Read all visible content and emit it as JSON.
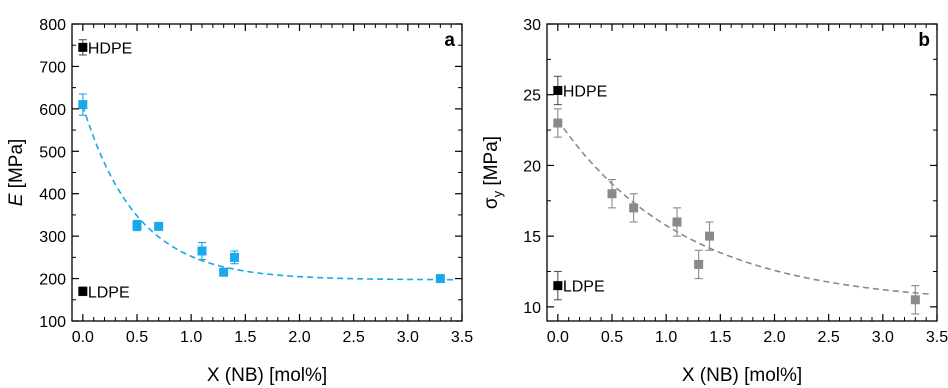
{
  "chart_data": [
    {
      "type": "scatter",
      "panel_label": "a",
      "title": "",
      "xlabel": "X (NB) [mol%]",
      "ylabel": {
        "italic": "E",
        "rest": " [MPa]"
      },
      "xlim": [
        -0.1,
        3.5
      ],
      "ylim": [
        100,
        800
      ],
      "xticks": [
        0.0,
        0.5,
        1.0,
        1.5,
        2.0,
        2.5,
        3.0,
        3.5
      ],
      "xtick_labels": [
        "0.0",
        "0.5",
        "1.0",
        "1.5",
        "2.0",
        "2.5",
        "3.0",
        "3.5"
      ],
      "yticks": [
        100,
        200,
        300,
        400,
        500,
        600,
        700,
        800
      ],
      "ytick_labels": [
        "100",
        "200",
        "300",
        "400",
        "500",
        "600",
        "700",
        "800"
      ],
      "grid": false,
      "series": [
        {
          "color": "#1aa8e8",
          "points": [
            {
              "x": 0.0,
              "y": 610,
              "err": 25
            },
            {
              "x": 0.5,
              "y": 325,
              "err": 12
            },
            {
              "x": 0.7,
              "y": 323,
              "err": 8
            },
            {
              "x": 1.1,
              "y": 265,
              "err": 20
            },
            {
              "x": 1.3,
              "y": 215,
              "err": 7
            },
            {
              "x": 1.4,
              "y": 250,
              "err": 15
            },
            {
              "x": 3.3,
              "y": 200,
              "err": 5
            }
          ]
        }
      ],
      "fit_curve": {
        "style": "dashed",
        "color": "#1aa8e8",
        "model": "exponential",
        "A": 410,
        "k": 2.0,
        "C": 197,
        "x_range": [
          0.0,
          3.45
        ]
      },
      "references": [
        {
          "label": "HDPE",
          "x": 0.0,
          "y": 745,
          "err": 18,
          "color": "#000000"
        },
        {
          "label": "LDPE",
          "x": 0.0,
          "y": 170,
          "err": 10,
          "color": "#000000"
        }
      ]
    },
    {
      "type": "scatter",
      "panel_label": "b",
      "title": "",
      "xlabel": "X (NB) [mol%]",
      "ylabel": {
        "symbol": "σ",
        "subscript": "y",
        "rest": " [MPa]"
      },
      "xlim": [
        -0.1,
        3.5
      ],
      "ylim": [
        9,
        30
      ],
      "xticks": [
        0.0,
        0.5,
        1.0,
        1.5,
        2.0,
        2.5,
        3.0,
        3.5
      ],
      "xtick_labels": [
        "0.0",
        "0.5",
        "1.0",
        "1.5",
        "2.0",
        "2.5",
        "3.0",
        "3.5"
      ],
      "yticks": [
        10,
        15,
        20,
        25,
        30
      ],
      "ytick_labels": [
        "10",
        "15",
        "20",
        "25",
        "30"
      ],
      "grid": false,
      "series": [
        {
          "color": "#8a8a8a",
          "points": [
            {
              "x": 0.0,
              "y": 23.0,
              "err": 1.0
            },
            {
              "x": 0.5,
              "y": 18.0,
              "err": 1.0
            },
            {
              "x": 0.7,
              "y": 17.0,
              "err": 1.0
            },
            {
              "x": 1.1,
              "y": 16.0,
              "err": 1.0
            },
            {
              "x": 1.3,
              "y": 13.0,
              "err": 1.0
            },
            {
              "x": 1.4,
              "y": 15.0,
              "err": 1.0
            },
            {
              "x": 3.3,
              "y": 10.5,
              "err": 1.0
            }
          ]
        }
      ],
      "fit_curve": {
        "style": "dashed",
        "color": "#8a8a8a",
        "model": "exponential",
        "A": 13.0,
        "k": 0.85,
        "C": 10.2,
        "x_range": [
          0.0,
          3.45
        ]
      },
      "references": [
        {
          "label": "HDPE",
          "x": 0.0,
          "y": 25.3,
          "err": 1.0,
          "color": "#000000"
        },
        {
          "label": "LDPE",
          "x": 0.0,
          "y": 11.5,
          "err": 1.0,
          "color": "#000000"
        }
      ]
    }
  ]
}
